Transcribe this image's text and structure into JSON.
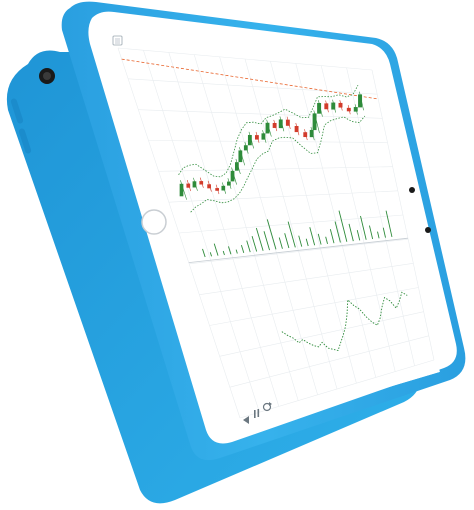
{
  "device": {
    "case_color": "#2fa9e5",
    "case_shadow": "#1b8ccc",
    "bezel_color": "#ffffff",
    "screen_color": "#ffffff"
  },
  "app": {
    "toolbar": {
      "menu_icon": "square-menu-icon"
    },
    "bottom_bar": {
      "back_icon": "rewind-icon",
      "pause_icon": "pause-icon",
      "refresh_icon": "refresh-icon"
    }
  },
  "colors": {
    "bull": "#2e8b3a",
    "bear": "#d23b2b",
    "band": "#2e8b3a",
    "volume": "#2e8b3a",
    "price_line": "#e8632b",
    "grid": "#e8ecef",
    "indicator": "#2e8b3a"
  },
  "chart_data": {
    "type": "candlestick",
    "series": [
      {
        "name": "",
        "values": [
          {
            "o": 30.0,
            "c": 31.8
          },
          {
            "o": 31.8,
            "c": 31.2
          },
          {
            "o": 31.2,
            "c": 32.1
          },
          {
            "o": 32.1,
            "c": 31.6
          },
          {
            "o": 31.6,
            "c": 31.0
          },
          {
            "o": 31.0,
            "c": 30.6
          },
          {
            "o": 30.6,
            "c": 31.3
          },
          {
            "o": 31.3,
            "c": 31.9
          },
          {
            "o": 31.9,
            "c": 33.5
          },
          {
            "o": 33.5,
            "c": 34.8
          },
          {
            "o": 34.8,
            "c": 36.6
          },
          {
            "o": 36.6,
            "c": 37.4
          },
          {
            "o": 37.4,
            "c": 39.0
          },
          {
            "o": 39.0,
            "c": 38.3
          },
          {
            "o": 38.3,
            "c": 39.3
          },
          {
            "o": 39.3,
            "c": 41.0
          },
          {
            "o": 41.0,
            "c": 40.2
          },
          {
            "o": 40.2,
            "c": 41.6
          },
          {
            "o": 41.6,
            "c": 40.6
          },
          {
            "o": 40.6,
            "c": 39.6
          },
          {
            "o": 39.6,
            "c": 38.8
          },
          {
            "o": 38.8,
            "c": 40.0
          },
          {
            "o": 40.0,
            "c": 42.8
          },
          {
            "o": 42.8,
            "c": 44.6
          },
          {
            "o": 44.6,
            "c": 43.6
          },
          {
            "o": 43.6,
            "c": 44.8
          },
          {
            "o": 44.8,
            "c": 44.0
          },
          {
            "o": 44.0,
            "c": 43.4
          },
          {
            "o": 43.4,
            "c": 44.2
          },
          {
            "o": 44.2,
            "c": 46.5
          }
        ]
      }
    ],
    "volume": [
      2,
      1,
      3,
      1,
      2,
      1,
      2,
      3,
      4,
      6,
      5,
      8,
      3,
      4,
      7,
      3,
      2,
      5,
      3,
      2,
      4,
      6,
      9,
      5,
      3,
      7,
      4,
      2,
      3,
      8
    ],
    "indicator": [
      52,
      48,
      45,
      40,
      42,
      38,
      35,
      33,
      36,
      30,
      28,
      26,
      32,
      38,
      45,
      55,
      68,
      62,
      58,
      50,
      44,
      40,
      46,
      56,
      64,
      60,
      52,
      58,
      66,
      62
    ],
    "grid": true
  }
}
